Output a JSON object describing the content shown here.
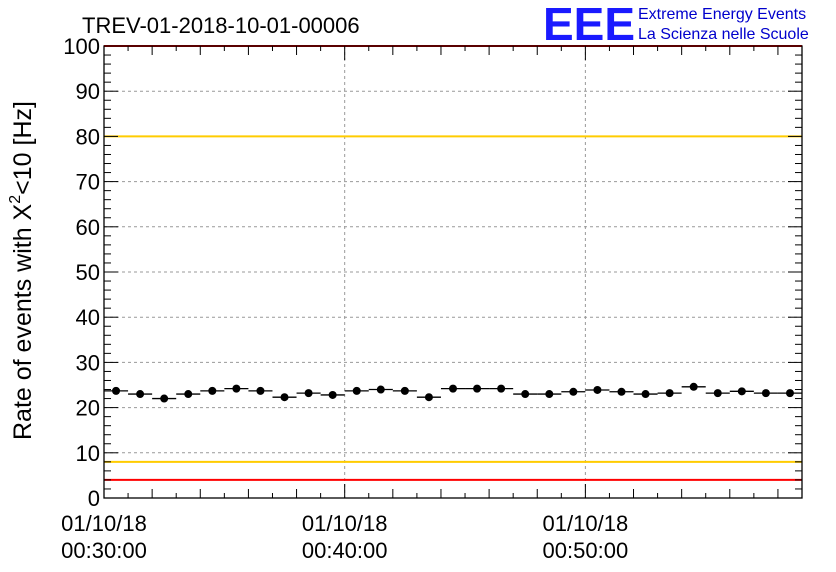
{
  "chart_data": {
    "type": "scatter",
    "title": "TREV-01-2018-10-01-00006",
    "ylabel_main": "Rate of events with X",
    "ylabel_sup": "2",
    "ylabel_tail": "<10 [Hz]",
    "xlabel": "",
    "xlim": [
      0,
      29
    ],
    "ylim": [
      0,
      100
    ],
    "y_ticks": [
      "0",
      "10",
      "20",
      "30",
      "40",
      "50",
      "60",
      "70",
      "80",
      "90",
      "100"
    ],
    "x_ticks": [
      {
        "value": 0,
        "date": "01/10/18",
        "time": "00:30:00"
      },
      {
        "value": 10,
        "date": "01/10/18",
        "time": "00:40:00"
      },
      {
        "value": 20,
        "date": "01/10/18",
        "time": "00:50:00"
      }
    ],
    "grid": true,
    "reference_lines": [
      {
        "name": "upper-red-line",
        "value": 100,
        "color": "#ff0000"
      },
      {
        "name": "upper-yellow-line",
        "value": 80,
        "color": "#ffcc00"
      },
      {
        "name": "lower-yellow-line",
        "value": 8,
        "color": "#ffcc00"
      },
      {
        "name": "lower-red-line",
        "value": 4,
        "color": "#ff0000"
      }
    ],
    "series": [
      {
        "name": "rate",
        "color": "#000000",
        "x": [
          0.5,
          1.5,
          2.5,
          3.5,
          4.5,
          5.5,
          6.5,
          7.5,
          8.5,
          9.5,
          10.5,
          11.5,
          12.5,
          13.5,
          14.5,
          15.5,
          16.5,
          17.5,
          18.5,
          19.5,
          20.5,
          21.5,
          22.5,
          23.5,
          24.5,
          25.5,
          26.5,
          27.5,
          28.5
        ],
        "values": [
          23.7,
          23.0,
          22.0,
          23.0,
          23.7,
          24.2,
          23.7,
          22.3,
          23.2,
          22.8,
          23.7,
          24.0,
          23.7,
          22.3,
          24.2,
          24.2,
          24.2,
          23.0,
          23.0,
          23.5,
          23.9,
          23.5,
          23.0,
          23.2,
          24.6,
          23.2,
          23.6,
          23.2,
          23.2
        ],
        "x_err": 0.5
      }
    ]
  },
  "logo": {
    "big": "EEE",
    "line1": "Extreme Energy Events",
    "line2": "La Scienza nelle Scuole"
  }
}
